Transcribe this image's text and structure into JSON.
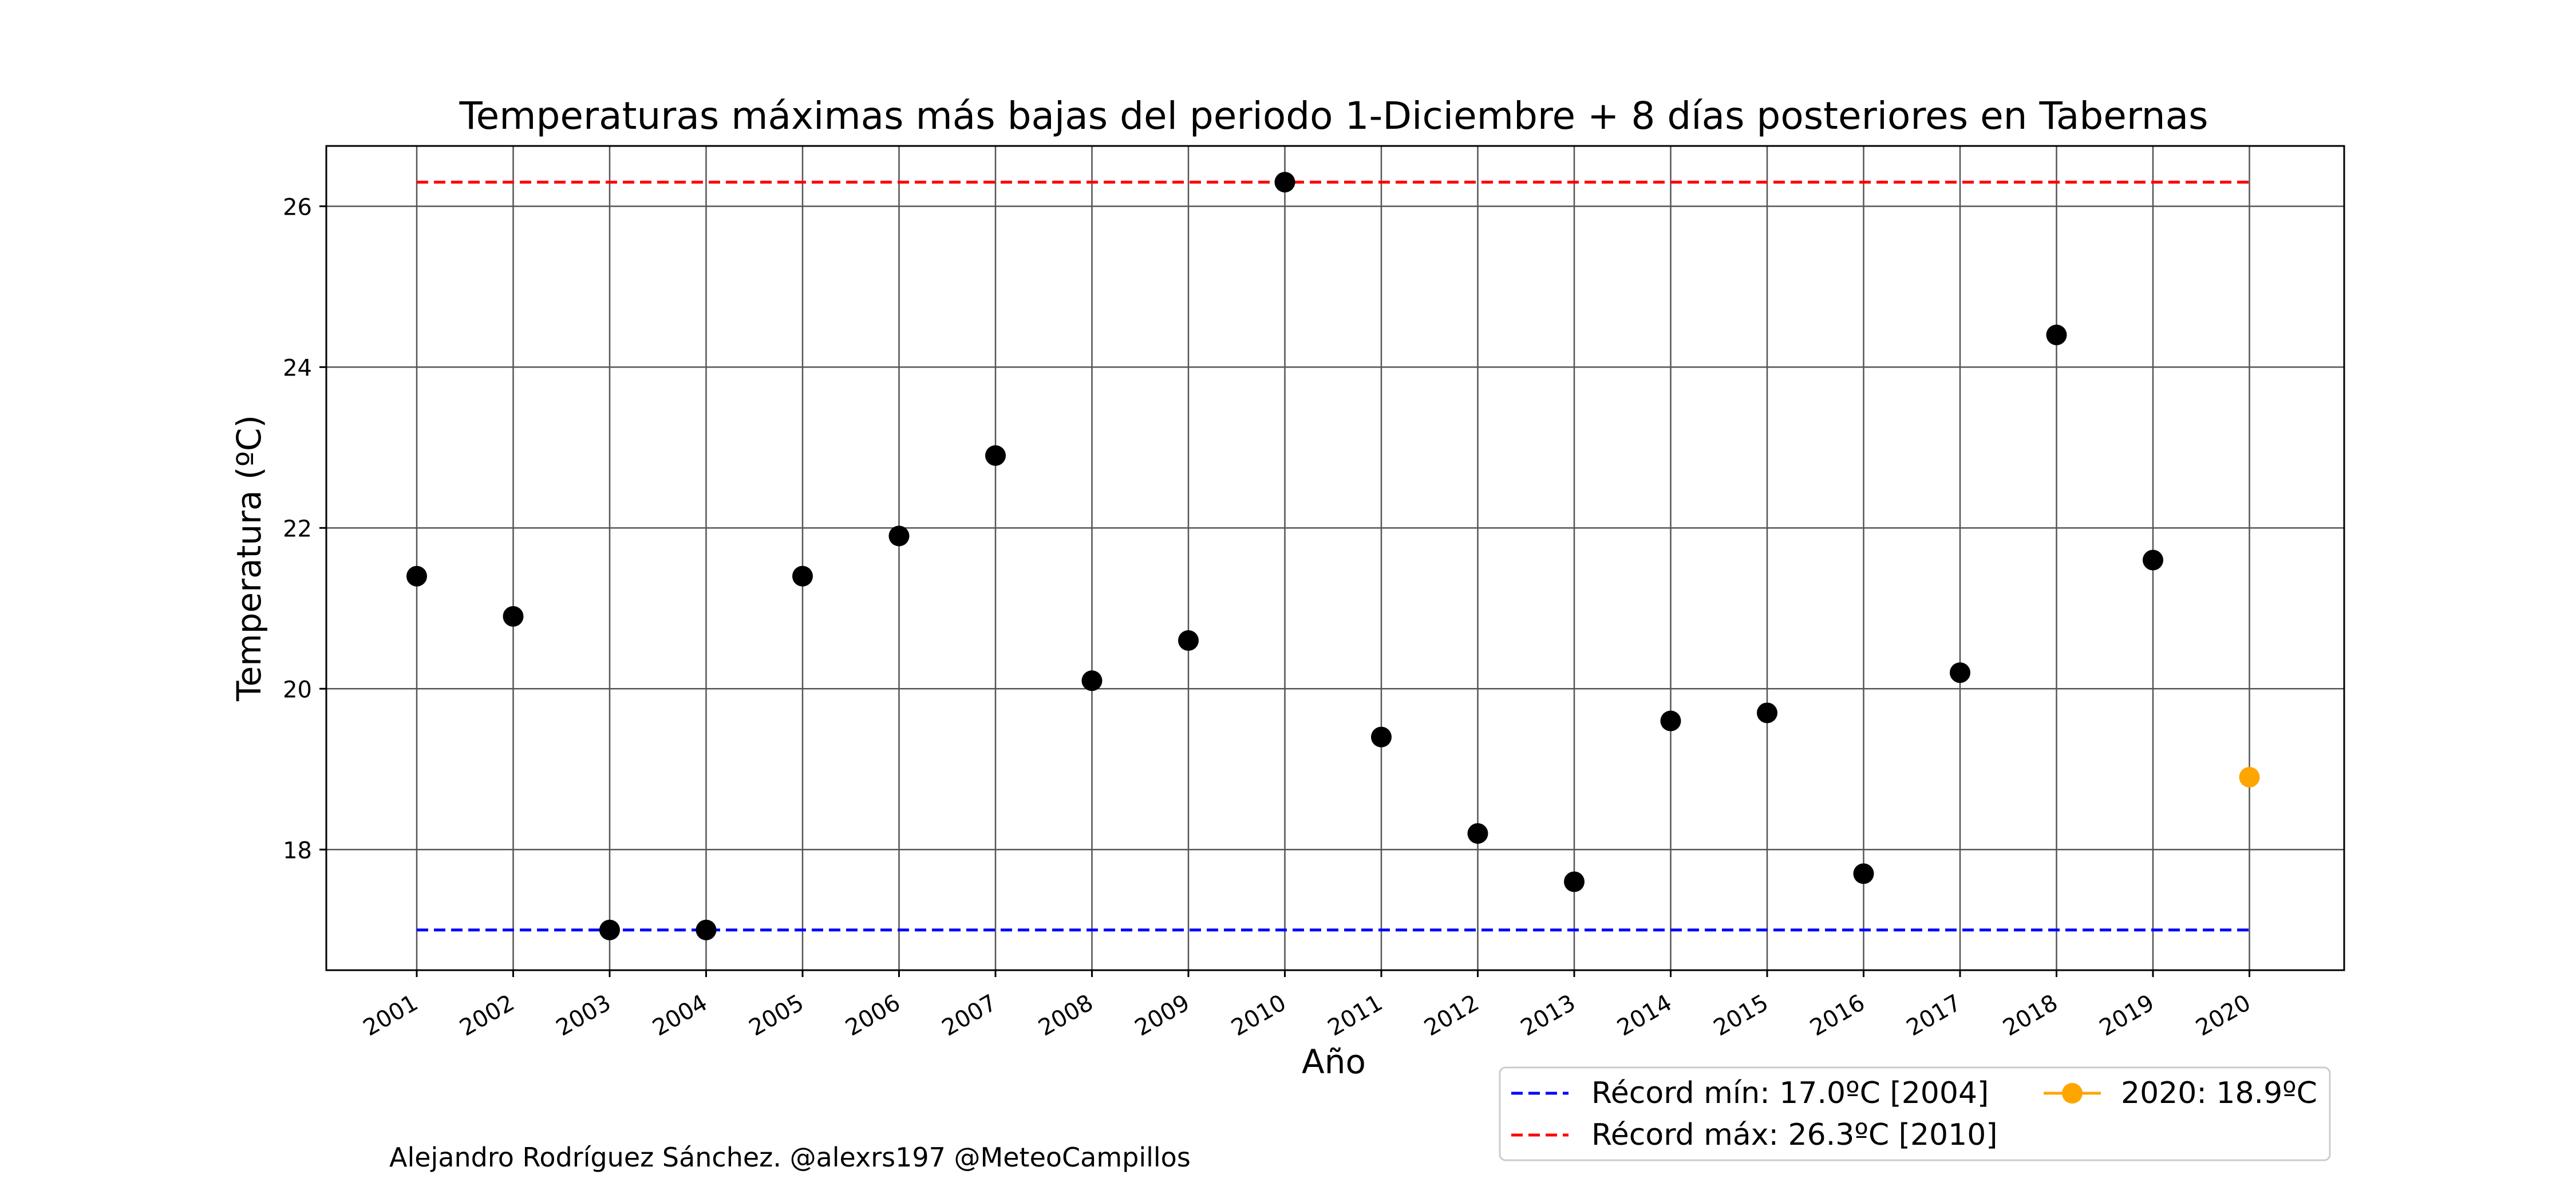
{
  "chart_data": {
    "type": "scatter",
    "title": "Temperaturas máximas más bajas del periodo 1-Diciembre + 8 días posteriores en Tabernas",
    "xlabel": "Año",
    "ylabel": "Temperatura (ºC)",
    "x": [
      "2001",
      "2002",
      "2003",
      "2004",
      "2005",
      "2006",
      "2007",
      "2008",
      "2009",
      "2010",
      "2011",
      "2012",
      "2013",
      "2014",
      "2015",
      "2016",
      "2017",
      "2018",
      "2019",
      "2020"
    ],
    "series": [
      {
        "color": "#000000",
        "values": [
          21.4,
          20.9,
          17.0,
          17.0,
          21.4,
          21.9,
          22.9,
          20.1,
          20.6,
          26.3,
          19.4,
          18.2,
          17.6,
          19.6,
          19.7,
          17.7,
          20.2,
          24.4,
          21.6,
          null
        ]
      },
      {
        "name": "2020: 18.9ºC",
        "color": "#FFA500",
        "values": [
          null,
          null,
          null,
          null,
          null,
          null,
          null,
          null,
          null,
          null,
          null,
          null,
          null,
          null,
          null,
          null,
          null,
          null,
          null,
          18.9
        ]
      }
    ],
    "reference_lines": [
      {
        "name": "Récord mín: 17.0ºC [2004]",
        "value": 17.0,
        "color": "#0000FF",
        "style": "dashed"
      },
      {
        "name": "Récord máx: 26.3ºC [2010]",
        "value": 26.3,
        "color": "#FF0000",
        "style": "dashed"
      }
    ],
    "yticks": [
      18,
      20,
      22,
      24,
      26
    ],
    "ylim": [
      16.5,
      26.75
    ],
    "grid": true,
    "legend_position": "bottom-right, below axes"
  },
  "footer": {
    "credit": "Alejandro Rodríguez Sánchez. @alexrs197 @MeteoCampillos"
  }
}
